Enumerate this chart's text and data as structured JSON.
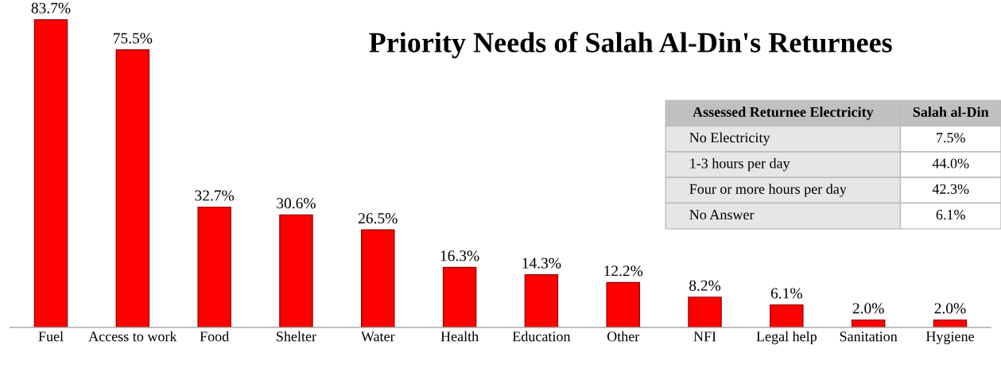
{
  "chart_data": [
    {
      "type": "bar",
      "title": "Priority Needs of Salah Al-Din's Returnees",
      "categories": [
        "Fuel",
        "Access to work",
        "Food",
        "Shelter",
        "Water",
        "Health",
        "Education",
        "Other",
        "NFI",
        "Legal help",
        "Sanitation",
        "Hygiene"
      ],
      "values": [
        83.7,
        75.5,
        32.7,
        30.6,
        26.5,
        16.3,
        14.3,
        12.2,
        8.2,
        6.1,
        2.0,
        2.0
      ],
      "value_labels": [
        "83.7%",
        "75.5%",
        "32.7%",
        "30.6%",
        "26.5%",
        "16.3%",
        "14.3%",
        "12.2%",
        "8.2%",
        "6.1%",
        "2.0%",
        "2.0%"
      ],
      "color": "#ff0000",
      "tick_labels": "x",
      "grid": false,
      "legend": false
    },
    {
      "type": "other",
      "xlabel": "Assessed Returnee Electricity",
      "ylabel": "Salah al-Din",
      "categories": [
        "No Electricity",
        "1-3 hours per day",
        "Four or more hours per day",
        "No Answer"
      ],
      "values": [
        7.5,
        44.0,
        42.3,
        6.1
      ],
      "value_labels": [
        "7.5%",
        "44.0%",
        "42.3%",
        "6.1%"
      ]
    }
  ]
}
